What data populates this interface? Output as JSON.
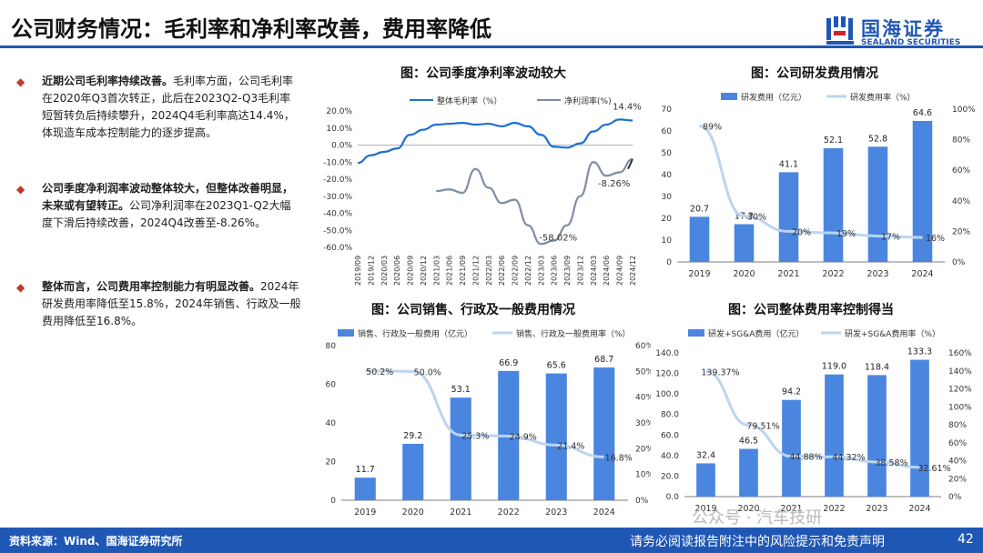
{
  "header": {
    "title": "公司财务情况：毛利率和净利率改善，费用率降低",
    "logo_cn": "国海证券",
    "logo_en": "SEALAND SECURITIES",
    "brand_color": "#1f57b4"
  },
  "bullets": [
    {
      "bold": "近期公司毛利率持续改善。",
      "text": "毛利率方面，公司毛利率在2020年Q3首次转正，此后在2023Q2-Q3毛利率短暂转负后持续攀升，2024Q4毛利率高达14.4%，体现造车成本控制能力的逐步提高。"
    },
    {
      "bold": "公司季度净利润率波动整体较大，但整体改善明显，未来或有望转正。",
      "text": "公司净利润率在2023Q1-Q2大幅度下滑后持续改善，2024Q4改善至-8.26%。"
    },
    {
      "bold": "整体而言，公司费用率控制能力有明显改善。",
      "text": "2024年研发费用率降低至15.8%，2024年销售、行政及一般费用降低至16.8%。"
    }
  ],
  "footer": {
    "source": "资料来源：Wind、国海证券研究所",
    "disclaimer": "请务必阅读报告附注中的风险提示和免责声明",
    "page": "42"
  },
  "watermark": "公众号 · 汽车技研",
  "chart_data": [
    {
      "id": "margin",
      "type": "line",
      "title": "图：公司季度净利率波动较大",
      "x": [
        "2019/09",
        "2019/12",
        "2020/03",
        "2020/06",
        "2020/09",
        "2020/12",
        "2021/03",
        "2021/06",
        "2021/09",
        "2021/12",
        "2022/03",
        "2022/06",
        "2022/09",
        "2022/12",
        "2023/03",
        "2023/06",
        "2023/09",
        "2023/12",
        "2024/03",
        "2024/06",
        "2024/09",
        "2024/12"
      ],
      "ylim": [
        -60,
        20
      ],
      "yticks": [
        "20.0%",
        "10.0%",
        "0.0%",
        "-10.0%",
        "-20.0%",
        "-30.0%",
        "-40.0%",
        "-50.0%",
        "-60.0%"
      ],
      "series": [
        {
          "name": "整体毛利率（%）",
          "color": "#1f6fd1",
          "values": [
            -10.5,
            -6.0,
            -4.0,
            -2.0,
            6.0,
            9.0,
            12.0,
            12.5,
            13.0,
            12.0,
            12.5,
            11.0,
            13.0,
            11.0,
            6.0,
            -1.0,
            -1.5,
            1.0,
            8.0,
            12.0,
            15.0,
            14.4
          ]
        },
        {
          "name": "净利润率(%)",
          "color": "#7f8da3",
          "values": [
            null,
            null,
            null,
            null,
            null,
            null,
            -27.0,
            -26.0,
            -28.0,
            -14.0,
            -25.0,
            -34.0,
            -32.0,
            -47.0,
            -58.02,
            -56.0,
            -47.0,
            -30.0,
            -10.0,
            -18.0,
            -16.0,
            -8.26
          ]
        }
      ],
      "labels": {
        "gross_last": "14.4%",
        "net_min": "-58.02%",
        "net_last": "-8.26%"
      }
    },
    {
      "id": "rd",
      "type": "bar",
      "title": "图：公司研发费用情况",
      "categories": [
        "2019",
        "2020",
        "2021",
        "2022",
        "2023",
        "2024"
      ],
      "bar_series": {
        "name": "研发费用（亿元）",
        "values": [
          20.7,
          17.3,
          41.1,
          52.1,
          52.8,
          64.6
        ]
      },
      "rate_series": {
        "name": "研发费用率（%）",
        "values": [
          89,
          30,
          20,
          19,
          17,
          16
        ],
        "labels": [
          "89%",
          "30%",
          "20%",
          "19%",
          "17%",
          "16%"
        ]
      },
      "ylim": [
        0,
        70
      ],
      "yticks": [
        "70",
        "60",
        "50",
        "40",
        "30",
        "20",
        "10",
        "0"
      ],
      "y2ticks": [
        "100%",
        "80%",
        "60%",
        "40%",
        "20%",
        "0%"
      ],
      "y2lim": [
        0,
        100
      ]
    },
    {
      "id": "sga",
      "type": "bar",
      "title": "图：公司销售、行政及一般费用情况",
      "categories": [
        "2019",
        "2020",
        "2021",
        "2022",
        "2023",
        "2024"
      ],
      "bar_series": {
        "name": "销售、行政及一般费用（亿元）",
        "values": [
          11.7,
          29.2,
          53.1,
          66.9,
          65.6,
          68.7
        ]
      },
      "rate_series": {
        "name": "销售、行政及一般费用率（%）",
        "values": [
          50.2,
          50.0,
          25.3,
          24.9,
          21.4,
          16.8
        ],
        "labels": [
          "50.2%",
          "50.0%",
          "25.3%",
          "24.9%",
          "21.4%",
          "16.8%"
        ]
      },
      "ylim": [
        0,
        80
      ],
      "yticks": [
        "80",
        "60",
        "40",
        "20",
        "0"
      ],
      "y2ticks": [
        "60%",
        "50%",
        "40%",
        "30%",
        "20%",
        "10%",
        "0%"
      ],
      "y2lim": [
        0,
        60
      ]
    },
    {
      "id": "total",
      "type": "bar",
      "title": "图：公司整体费用率控制得当",
      "categories": [
        "2019",
        "2020",
        "2021",
        "2022",
        "2023",
        "2024"
      ],
      "bar_series": {
        "name": "研发+SG&A费用（亿元）",
        "values": [
          32.4,
          46.5,
          94.2,
          119.0,
          118.4,
          133.3
        ]
      },
      "rate_series": {
        "name": "研发+SG&A费用率（%）",
        "values": [
          139.37,
          79.51,
          44.88,
          44.32,
          38.58,
          32.61
        ],
        "labels": [
          "139.37%",
          "79.51%",
          "44.88%",
          "44.32%",
          "38.58%",
          "32.61%"
        ]
      },
      "ylim": [
        0,
        140
      ],
      "yticks": [
        "140.0",
        "120.0",
        "100.0",
        "80.0",
        "60.0",
        "40.0",
        "20.0",
        "0.0"
      ],
      "y2ticks": [
        "160%",
        "140%",
        "120%",
        "100%",
        "80%",
        "60%",
        "40%",
        "20%",
        "0%"
      ],
      "y2lim": [
        0,
        160
      ]
    }
  ]
}
